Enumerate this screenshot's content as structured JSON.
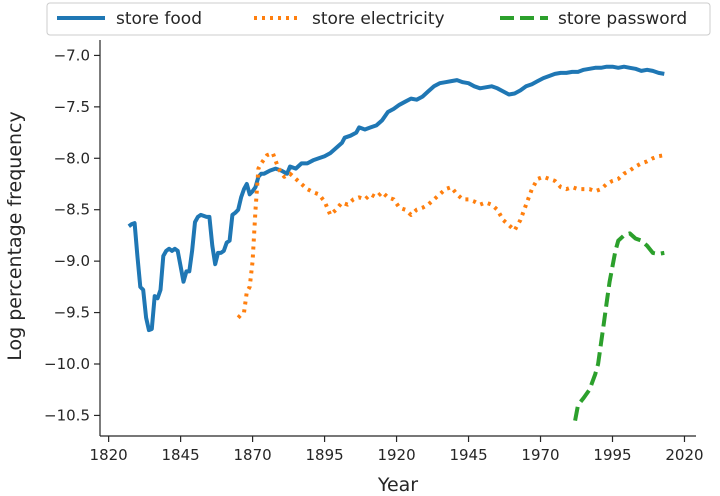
{
  "chart_data": {
    "type": "line",
    "title": "",
    "xlabel": "Year",
    "ylabel": "Log percentage frequency",
    "xlim": [
      1817,
      2024
    ],
    "ylim": [
      -10.7,
      -6.85
    ],
    "x_ticks": [
      1820,
      1845,
      1870,
      1895,
      1920,
      1945,
      1970,
      1995,
      2020
    ],
    "x_tick_labels": [
      "1820",
      "1845",
      "1870",
      "1895",
      "1920",
      "1945",
      "1970",
      "1995",
      "2020"
    ],
    "y_ticks": [
      -7.0,
      -7.5,
      -8.0,
      -8.5,
      -9.0,
      -9.5,
      -10.0,
      -10.5
    ],
    "y_tick_labels": [
      "−7.0",
      "−7.5",
      "−8.0",
      "−8.5",
      "−9.0",
      "−9.5",
      "−10.0",
      "−10.5"
    ],
    "grid": false,
    "legend_position": "top",
    "series": [
      {
        "name": "store food",
        "color": "#1f77b4",
        "style": "solid",
        "points": [
          [
            1827,
            -8.66
          ],
          [
            1828,
            -8.64
          ],
          [
            1829,
            -8.63
          ],
          [
            1830,
            -8.95
          ],
          [
            1831,
            -9.25
          ],
          [
            1832,
            -9.28
          ],
          [
            1833,
            -9.55
          ],
          [
            1834,
            -9.67
          ],
          [
            1835,
            -9.66
          ],
          [
            1836,
            -9.34
          ],
          [
            1837,
            -9.36
          ],
          [
            1838,
            -9.28
          ],
          [
            1839,
            -8.95
          ],
          [
            1840,
            -8.9
          ],
          [
            1841,
            -8.88
          ],
          [
            1842,
            -8.9
          ],
          [
            1843,
            -8.88
          ],
          [
            1844,
            -8.9
          ],
          [
            1845,
            -9.05
          ],
          [
            1846,
            -9.2
          ],
          [
            1847,
            -9.1
          ],
          [
            1848,
            -9.1
          ],
          [
            1849,
            -8.9
          ],
          [
            1850,
            -8.62
          ],
          [
            1851,
            -8.57
          ],
          [
            1852,
            -8.55
          ],
          [
            1853,
            -8.56
          ],
          [
            1854,
            -8.57
          ],
          [
            1855,
            -8.57
          ],
          [
            1856,
            -8.85
          ],
          [
            1857,
            -9.03
          ],
          [
            1858,
            -8.92
          ],
          [
            1859,
            -8.92
          ],
          [
            1860,
            -8.9
          ],
          [
            1861,
            -8.82
          ],
          [
            1862,
            -8.8
          ],
          [
            1863,
            -8.55
          ],
          [
            1864,
            -8.53
          ],
          [
            1865,
            -8.5
          ],
          [
            1866,
            -8.38
          ],
          [
            1867,
            -8.3
          ],
          [
            1868,
            -8.25
          ],
          [
            1869,
            -8.35
          ],
          [
            1870,
            -8.32
          ],
          [
            1871,
            -8.28
          ],
          [
            1872,
            -8.18
          ],
          [
            1873,
            -8.15
          ],
          [
            1874,
            -8.15
          ],
          [
            1876,
            -8.12
          ],
          [
            1878,
            -8.1
          ],
          [
            1880,
            -8.12
          ],
          [
            1882,
            -8.15
          ],
          [
            1883,
            -8.08
          ],
          [
            1885,
            -8.1
          ],
          [
            1887,
            -8.05
          ],
          [
            1889,
            -8.05
          ],
          [
            1891,
            -8.02
          ],
          [
            1893,
            -8.0
          ],
          [
            1895,
            -7.98
          ],
          [
            1897,
            -7.95
          ],
          [
            1899,
            -7.9
          ],
          [
            1901,
            -7.85
          ],
          [
            1902,
            -7.8
          ],
          [
            1904,
            -7.78
          ],
          [
            1906,
            -7.75
          ],
          [
            1907,
            -7.7
          ],
          [
            1909,
            -7.72
          ],
          [
            1911,
            -7.7
          ],
          [
            1913,
            -7.68
          ],
          [
            1915,
            -7.63
          ],
          [
            1917,
            -7.55
          ],
          [
            1919,
            -7.52
          ],
          [
            1921,
            -7.48
          ],
          [
            1923,
            -7.45
          ],
          [
            1925,
            -7.42
          ],
          [
            1927,
            -7.43
          ],
          [
            1929,
            -7.4
          ],
          [
            1931,
            -7.35
          ],
          [
            1933,
            -7.3
          ],
          [
            1935,
            -7.27
          ],
          [
            1937,
            -7.26
          ],
          [
            1939,
            -7.25
          ],
          [
            1941,
            -7.24
          ],
          [
            1943,
            -7.26
          ],
          [
            1945,
            -7.27
          ],
          [
            1947,
            -7.3
          ],
          [
            1949,
            -7.32
          ],
          [
            1951,
            -7.31
          ],
          [
            1953,
            -7.3
          ],
          [
            1955,
            -7.32
          ],
          [
            1957,
            -7.35
          ],
          [
            1959,
            -7.38
          ],
          [
            1961,
            -7.37
          ],
          [
            1963,
            -7.34
          ],
          [
            1965,
            -7.3
          ],
          [
            1967,
            -7.28
          ],
          [
            1969,
            -7.25
          ],
          [
            1971,
            -7.22
          ],
          [
            1973,
            -7.2
          ],
          [
            1975,
            -7.18
          ],
          [
            1977,
            -7.17
          ],
          [
            1979,
            -7.17
          ],
          [
            1981,
            -7.16
          ],
          [
            1983,
            -7.16
          ],
          [
            1985,
            -7.14
          ],
          [
            1987,
            -7.13
          ],
          [
            1989,
            -7.12
          ],
          [
            1991,
            -7.12
          ],
          [
            1993,
            -7.11
          ],
          [
            1995,
            -7.11
          ],
          [
            1997,
            -7.12
          ],
          [
            1999,
            -7.11
          ],
          [
            2001,
            -7.12
          ],
          [
            2003,
            -7.13
          ],
          [
            2005,
            -7.15
          ],
          [
            2007,
            -7.14
          ],
          [
            2009,
            -7.15
          ],
          [
            2011,
            -7.17
          ],
          [
            2013,
            -7.18
          ]
        ]
      },
      {
        "name": "store electricity",
        "color": "#ff7f0e",
        "style": "dotted",
        "points": [
          [
            1865,
            -9.55
          ],
          [
            1866,
            -9.52
          ],
          [
            1867,
            -9.5
          ],
          [
            1868,
            -9.3
          ],
          [
            1869,
            -9.25
          ],
          [
            1870,
            -9.0
          ],
          [
            1871,
            -8.5
          ],
          [
            1872,
            -8.1
          ],
          [
            1873,
            -8.05
          ],
          [
            1875,
            -7.97
          ],
          [
            1877,
            -7.95
          ],
          [
            1879,
            -8.1
          ],
          [
            1881,
            -8.18
          ],
          [
            1883,
            -8.15
          ],
          [
            1885,
            -8.2
          ],
          [
            1887,
            -8.25
          ],
          [
            1889,
            -8.3
          ],
          [
            1891,
            -8.33
          ],
          [
            1893,
            -8.35
          ],
          [
            1895,
            -8.42
          ],
          [
            1897,
            -8.55
          ],
          [
            1899,
            -8.5
          ],
          [
            1901,
            -8.43
          ],
          [
            1903,
            -8.45
          ],
          [
            1905,
            -8.4
          ],
          [
            1907,
            -8.38
          ],
          [
            1909,
            -8.4
          ],
          [
            1911,
            -8.35
          ],
          [
            1913,
            -8.38
          ],
          [
            1915,
            -8.33
          ],
          [
            1917,
            -8.38
          ],
          [
            1919,
            -8.4
          ],
          [
            1921,
            -8.48
          ],
          [
            1923,
            -8.5
          ],
          [
            1925,
            -8.55
          ],
          [
            1927,
            -8.5
          ],
          [
            1929,
            -8.48
          ],
          [
            1931,
            -8.45
          ],
          [
            1933,
            -8.4
          ],
          [
            1935,
            -8.35
          ],
          [
            1937,
            -8.3
          ],
          [
            1939,
            -8.28
          ],
          [
            1941,
            -8.35
          ],
          [
            1943,
            -8.4
          ],
          [
            1945,
            -8.4
          ],
          [
            1947,
            -8.42
          ],
          [
            1949,
            -8.45
          ],
          [
            1951,
            -8.43
          ],
          [
            1953,
            -8.45
          ],
          [
            1955,
            -8.5
          ],
          [
            1957,
            -8.6
          ],
          [
            1959,
            -8.65
          ],
          [
            1961,
            -8.7
          ],
          [
            1963,
            -8.6
          ],
          [
            1965,
            -8.45
          ],
          [
            1967,
            -8.3
          ],
          [
            1969,
            -8.2
          ],
          [
            1971,
            -8.18
          ],
          [
            1973,
            -8.2
          ],
          [
            1975,
            -8.22
          ],
          [
            1977,
            -8.28
          ],
          [
            1979,
            -8.3
          ],
          [
            1981,
            -8.28
          ],
          [
            1983,
            -8.3
          ],
          [
            1985,
            -8.3
          ],
          [
            1987,
            -8.3
          ],
          [
            1989,
            -8.32
          ],
          [
            1991,
            -8.3
          ],
          [
            1993,
            -8.25
          ],
          [
            1995,
            -8.22
          ],
          [
            1997,
            -8.2
          ],
          [
            1999,
            -8.15
          ],
          [
            2001,
            -8.12
          ],
          [
            2003,
            -8.08
          ],
          [
            2005,
            -8.05
          ],
          [
            2007,
            -8.03
          ],
          [
            2009,
            -8.0
          ],
          [
            2011,
            -7.98
          ],
          [
            2013,
            -7.97
          ]
        ]
      },
      {
        "name": "store password",
        "color": "#2ca02c",
        "style": "dashed",
        "points": [
          [
            1982,
            -10.55
          ],
          [
            1983,
            -10.4
          ],
          [
            1985,
            -10.33
          ],
          [
            1987,
            -10.25
          ],
          [
            1989,
            -10.1
          ],
          [
            1990,
            -10.0
          ],
          [
            1991,
            -9.8
          ],
          [
            1992,
            -9.6
          ],
          [
            1993,
            -9.4
          ],
          [
            1994,
            -9.2
          ],
          [
            1995,
            -9.05
          ],
          [
            1996,
            -8.9
          ],
          [
            1997,
            -8.8
          ],
          [
            1999,
            -8.75
          ],
          [
            2001,
            -8.73
          ],
          [
            2003,
            -8.78
          ],
          [
            2005,
            -8.8
          ],
          [
            2007,
            -8.85
          ],
          [
            2009,
            -8.92
          ],
          [
            2011,
            -8.93
          ],
          [
            2013,
            -8.92
          ]
        ]
      }
    ]
  }
}
